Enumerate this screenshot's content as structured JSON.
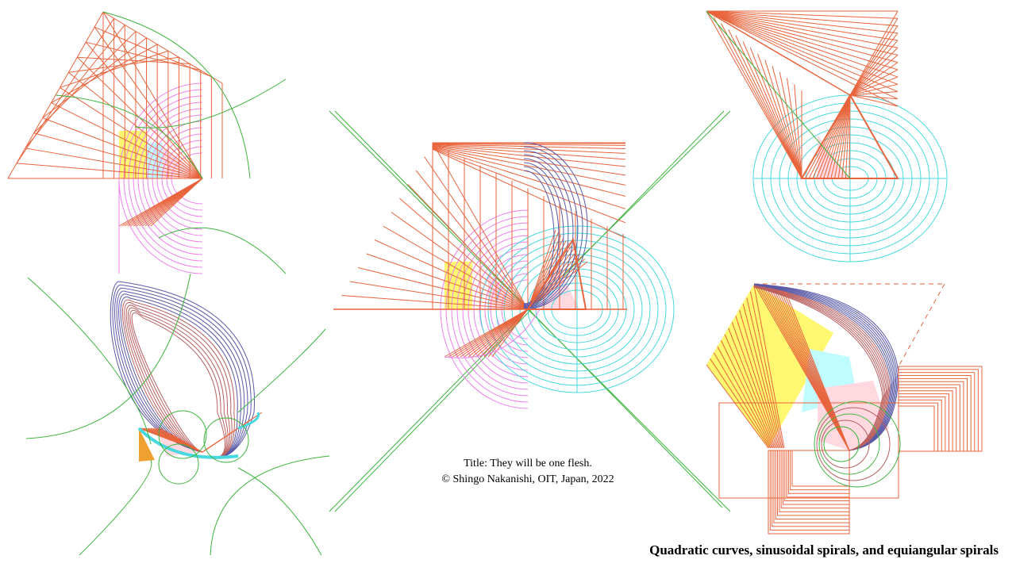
{
  "credit": {
    "title_line": "Title:  They  will  be one flesh.",
    "author_line": "© Shingo  Nakanishi,  OIT, Japan, 2022"
  },
  "caption": "Quadratic curves, sinusoidal spirals, and equiangular spirals",
  "colors": {
    "orange": "#e8643c",
    "pink": "#f080f0",
    "cyan": "#48d8e0",
    "green": "#3cb43c",
    "navy": "#5a5aa8",
    "brown": "#b86060",
    "yellow": "#fff870",
    "light_pink": "#ffd8e0",
    "light_cyan": "#c0fcff"
  }
}
